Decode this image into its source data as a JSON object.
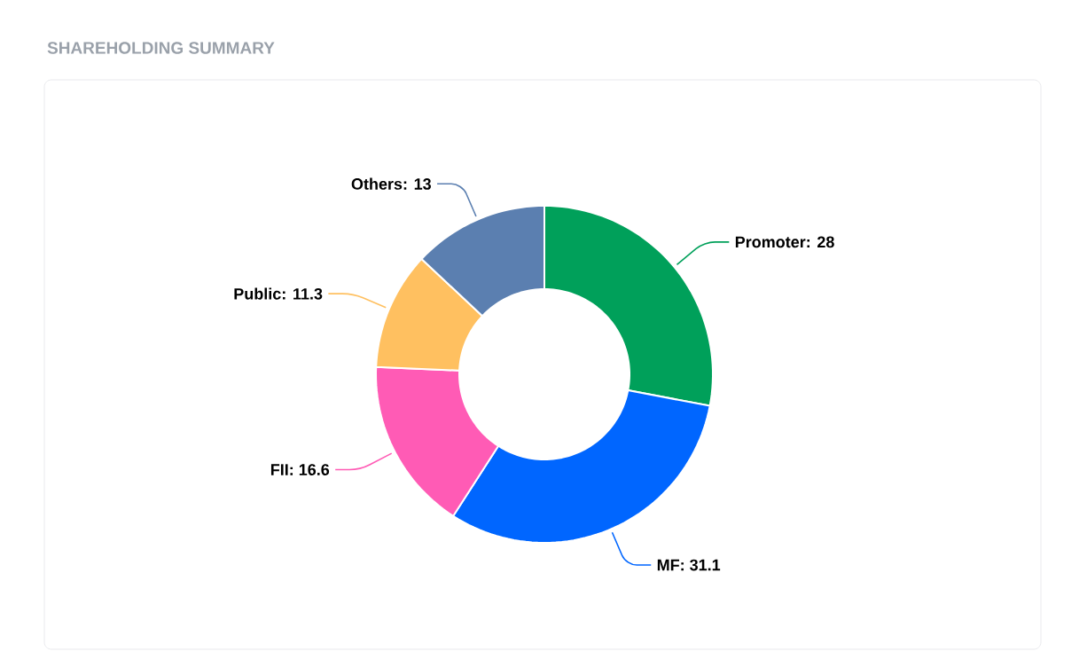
{
  "chart_data": {
    "type": "donut",
    "title": "SHAREHOLDING SUMMARY",
    "categories": [
      "Promoter",
      "MF",
      "FII",
      "Public",
      "Others"
    ],
    "values": [
      28,
      31.1,
      16.6,
      11.3,
      13
    ],
    "colors": [
      "#00a05a",
      "#0066ff",
      "#ff5bb5",
      "#ffc060",
      "#5b7fb0"
    ],
    "value_labels": [
      ": 28",
      ": 31.1",
      ": 16.6",
      ": 11.3",
      ": 13"
    ]
  }
}
